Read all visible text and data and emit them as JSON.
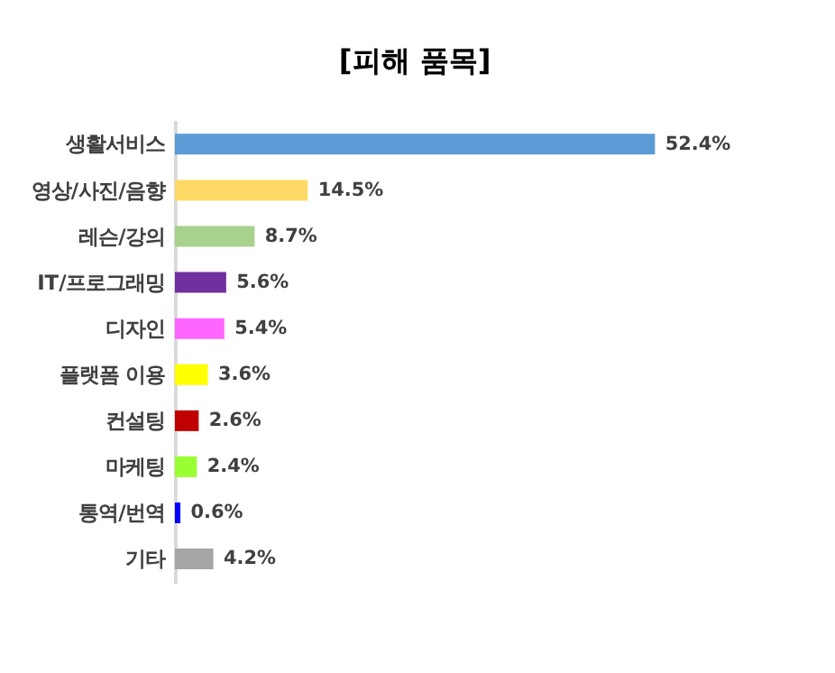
{
  "chart_data": {
    "type": "bar",
    "orientation": "horizontal",
    "title": "[피해  품목]",
    "categories": [
      "생활서비스",
      "영상/사진/음향",
      "레슨/강의",
      "IT/프로그래밍",
      "디자인",
      "플랫폼 이용",
      "컨설팅",
      "마케팅",
      "통역/번역",
      "기타"
    ],
    "values": [
      52.4,
      14.5,
      8.7,
      5.6,
      5.4,
      3.6,
      2.6,
      2.4,
      0.6,
      4.2
    ],
    "colors": [
      "#5b9bd5",
      "#ffd966",
      "#a9d18e",
      "#7030a0",
      "#ff66ff",
      "#ffff00",
      "#c00000",
      "#99ff33",
      "#0000ff",
      "#a6a6a6"
    ],
    "value_labels": [
      "52.4%",
      "14.5%",
      "8.7%",
      "5.6%",
      "5.4%",
      "3.6%",
      "2.6%",
      "2.4%",
      "0.6%",
      "4.2%"
    ],
    "tick_labels": "y"
  }
}
